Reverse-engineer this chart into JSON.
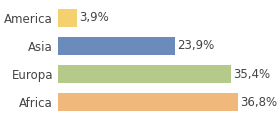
{
  "categories": [
    "America",
    "Asia",
    "Europa",
    "Africa"
  ],
  "values": [
    3.9,
    23.9,
    35.4,
    36.8
  ],
  "labels": [
    "3,9%",
    "23,9%",
    "35,4%",
    "36,8%"
  ],
  "bar_colors": [
    "#f5d06e",
    "#6b8cba",
    "#b5c98a",
    "#f0b87a"
  ],
  "background_color": "#ffffff",
  "xlim": [
    0,
    42
  ],
  "bar_height": 0.62,
  "fontsize_labels": 8.5,
  "fontsize_ticks": 8.5
}
